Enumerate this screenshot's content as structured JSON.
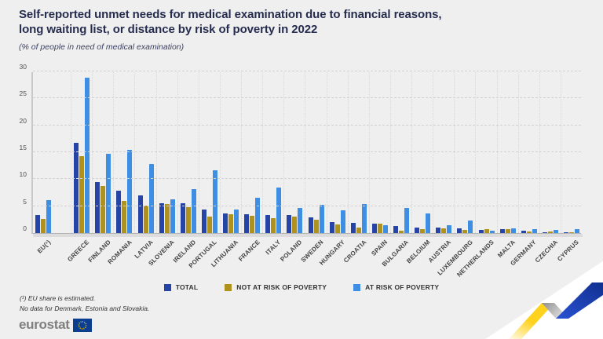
{
  "header": {
    "title_line1": "Self-reported unmet needs for medical examination due to financial reasons,",
    "title_line2": "long waiting list, or distance by risk of poverty in 2022",
    "subtitle": "(% of people in need of medical examination)"
  },
  "chart_data": {
    "type": "bar",
    "title": "Self-reported unmet needs for medical examination due to financial reasons, long waiting list, or distance by risk of poverty in 2022",
    "unit": "% of people in need of medical examination",
    "categories": [
      "EU(¹)",
      "GREECE",
      "FINLAND",
      "ROMANIA",
      "LATVIA",
      "SLOVENIA",
      "IRELAND",
      "PORTUGAL",
      "LITHUANIA",
      "FRANCE",
      "ITALY",
      "POLAND",
      "SWEDEN",
      "HUNGARY",
      "CROATIA",
      "SPAIN",
      "BULGARIA",
      "BELGIUM",
      "AUSTRIA",
      "LUXEMBOURG",
      "NETHERLANDS",
      "MALTA",
      "GERMANY",
      "CZECHIA",
      "CYPRUS"
    ],
    "series": [
      {
        "name": "TOTAL",
        "color": "#2644a5",
        "values": [
          3.3,
          16.7,
          9.5,
          7.9,
          7.0,
          5.6,
          5.5,
          4.4,
          3.7,
          3.5,
          3.4,
          3.3,
          2.9,
          2.0,
          1.9,
          1.7,
          1.3,
          1.0,
          1.0,
          0.9,
          0.6,
          0.7,
          0.4,
          0.2,
          0.1
        ]
      },
      {
        "name": "NOT AT RISK OF POVERTY",
        "color": "#af921e",
        "values": [
          2.6,
          14.3,
          8.8,
          6.0,
          5.1,
          5.4,
          4.8,
          3.0,
          3.5,
          3.2,
          2.7,
          3.0,
          2.5,
          1.6,
          1.0,
          1.7,
          0.5,
          0.7,
          0.9,
          0.6,
          0.7,
          0.8,
          0.3,
          0.3,
          0.2
        ]
      },
      {
        "name": "AT RISK OF POVERTY",
        "color": "#3e8ee4",
        "values": [
          6.1,
          28.9,
          14.7,
          15.5,
          12.8,
          6.3,
          8.2,
          11.7,
          4.4,
          6.5,
          8.5,
          4.6,
          5.2,
          4.2,
          5.4,
          1.4,
          4.6,
          3.6,
          1.5,
          2.4,
          0.5,
          0.9,
          0.8,
          0.6,
          0.8
        ]
      }
    ],
    "ylim": [
      0,
      30
    ],
    "yticks": [
      0,
      5,
      10,
      15,
      20,
      25,
      30
    ],
    "grid": "dashed horizontal + dotted vertical separators",
    "legend_position": "bottom center"
  },
  "footnotes": {
    "line1": "(¹) EU share is estimated.",
    "line2": "No data for Denmark, Estonia and Slovakia."
  },
  "logo": {
    "text": "eurostat"
  },
  "colors": {
    "background": "#efefef",
    "title": "#262c4e",
    "total": "#2644a5",
    "not_at_risk": "#af921e",
    "at_risk": "#3e8ee4",
    "ribbon_yellow": "#ffd21e",
    "ribbon_blue": "#1c3bb0",
    "flag_blue": "#0b3d91",
    "flag_stars": "#ffd617"
  }
}
